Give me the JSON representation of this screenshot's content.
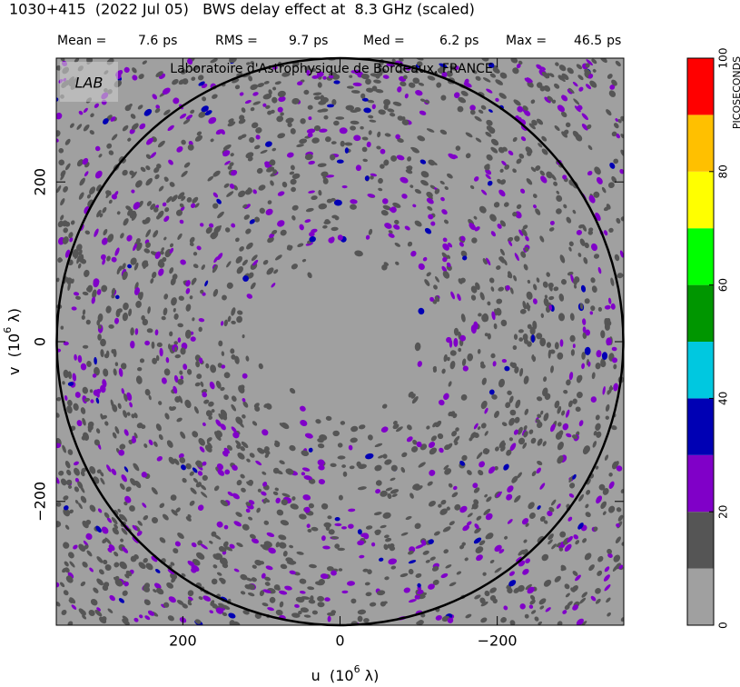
{
  "chart_data": {
    "type": "heatmap",
    "title": "1030+415  (2022 Jul 05)   BWS delay effect at  8.3 GHz (scaled)",
    "stats": [
      {
        "name": "Mean =",
        "value": 7.6,
        "unit": "ps"
      },
      {
        "name": "RMS =",
        "value": 9.7,
        "unit": "ps"
      },
      {
        "name": "Med =",
        "value": 6.2,
        "unit": "ps"
      },
      {
        "name": "Max =",
        "value": 46.5,
        "unit": "ps"
      }
    ],
    "watermark": "Laboratoire d'Astrophysique de Bordeaux, FRANCE",
    "logo": "LAB",
    "x_label": {
      "text": "u  (10",
      "sup": "6",
      "unit": " λ)"
    },
    "y_label": {
      "text": "v  (10",
      "sup": "6",
      "unit": " λ)"
    },
    "xlim": [
      361,
      -361
    ],
    "ylim": [
      -355,
      355
    ],
    "xticks": [
      200,
      0,
      {
        "value": -200,
        "label": "−200"
      }
    ],
    "yticks": [
      {
        "value": -200,
        "label": "−200"
      },
      0,
      200
    ],
    "colorbar": {
      "label": "PICOSECONDS",
      "lim": [
        0,
        100
      ],
      "ticks": [
        0,
        20,
        40,
        60,
        80,
        100
      ],
      "bounds": [
        0,
        10,
        20,
        30,
        40,
        50,
        60,
        70,
        80,
        90,
        100
      ],
      "colors": [
        "#a0a0a0",
        "#555555",
        "#8000c8",
        "#0000b4",
        "#00c8e0",
        "#009600",
        "#00ff00",
        "#ffff00",
        "#ffc000",
        "#ff0000"
      ]
    }
  }
}
